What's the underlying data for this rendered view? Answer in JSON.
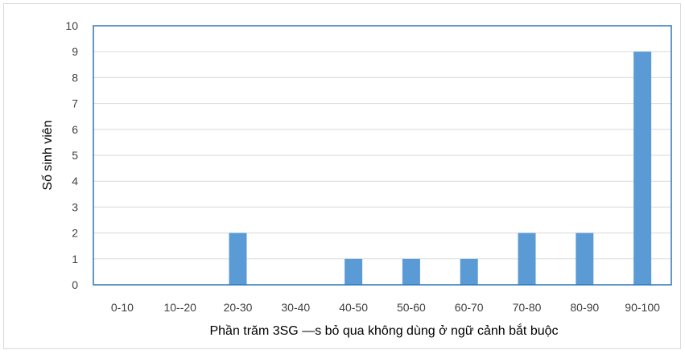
{
  "chart_data": {
    "type": "bar",
    "categories": [
      "0-10",
      "10--20",
      "20-30",
      "30-40",
      "40-50",
      "50-60",
      "60-70",
      "70-80",
      "80-90",
      "90-100"
    ],
    "values": [
      0,
      0,
      2,
      0,
      1,
      1,
      1,
      2,
      2,
      9
    ],
    "title": "",
    "xlabel": "Phần trăm 3SG —s bỏ qua không dùng ở ngữ cảnh bắt buộc",
    "ylabel": "Số sinh viên",
    "ylim": [
      0,
      10
    ],
    "yticks": [
      "0",
      "1",
      "2",
      "3",
      "4",
      "5",
      "6",
      "7",
      "8",
      "9",
      "10"
    ],
    "grid": true,
    "legend": "none",
    "colors": {
      "bar": "#5b9bd5",
      "plot_border": "#2e75b6",
      "grid": "#d9d9d9",
      "frame": "#d9d9d9"
    }
  }
}
